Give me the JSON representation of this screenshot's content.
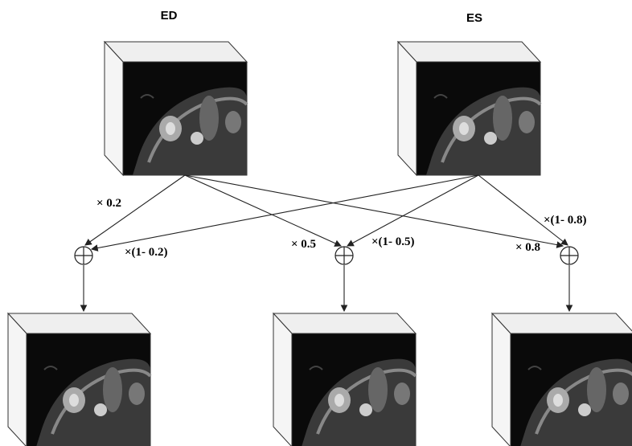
{
  "inputs": [
    {
      "label": "ED"
    },
    {
      "label": "ES"
    }
  ],
  "weights": {
    "ed_0": "× 0.2",
    "es_0": "×(1- 0.2)",
    "ed_1": "× 0.5",
    "es_1": "×(1- 0.5)",
    "ed_2": "× 0.8",
    "es_2": "×(1- 0.8)"
  }
}
